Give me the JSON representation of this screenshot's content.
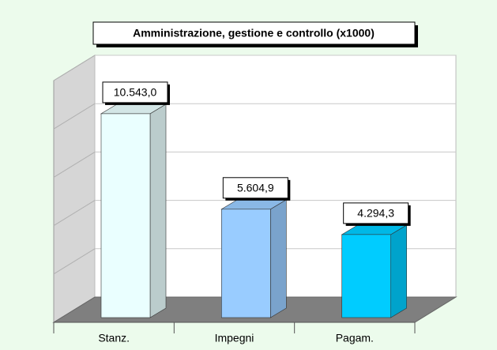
{
  "chart_data": {
    "type": "bar3d",
    "title": "Amministrazione, gestione e controllo (x1000)",
    "categories": [
      "Stanz.",
      "Impegni",
      "Pagam."
    ],
    "series": [
      {
        "name": null,
        "colors": [
          "#eaffff",
          "#99ccff",
          "#00ccff"
        ],
        "values": [
          10543.0,
          5604.9,
          4294.3
        ],
        "value_labels": [
          "10.543,0",
          "5.604,9",
          "4.294,3"
        ]
      }
    ],
    "ylim": [
      0,
      12500
    ],
    "yticks": [
      0,
      2500,
      5000,
      7500,
      10000,
      12500
    ],
    "grid": true
  }
}
